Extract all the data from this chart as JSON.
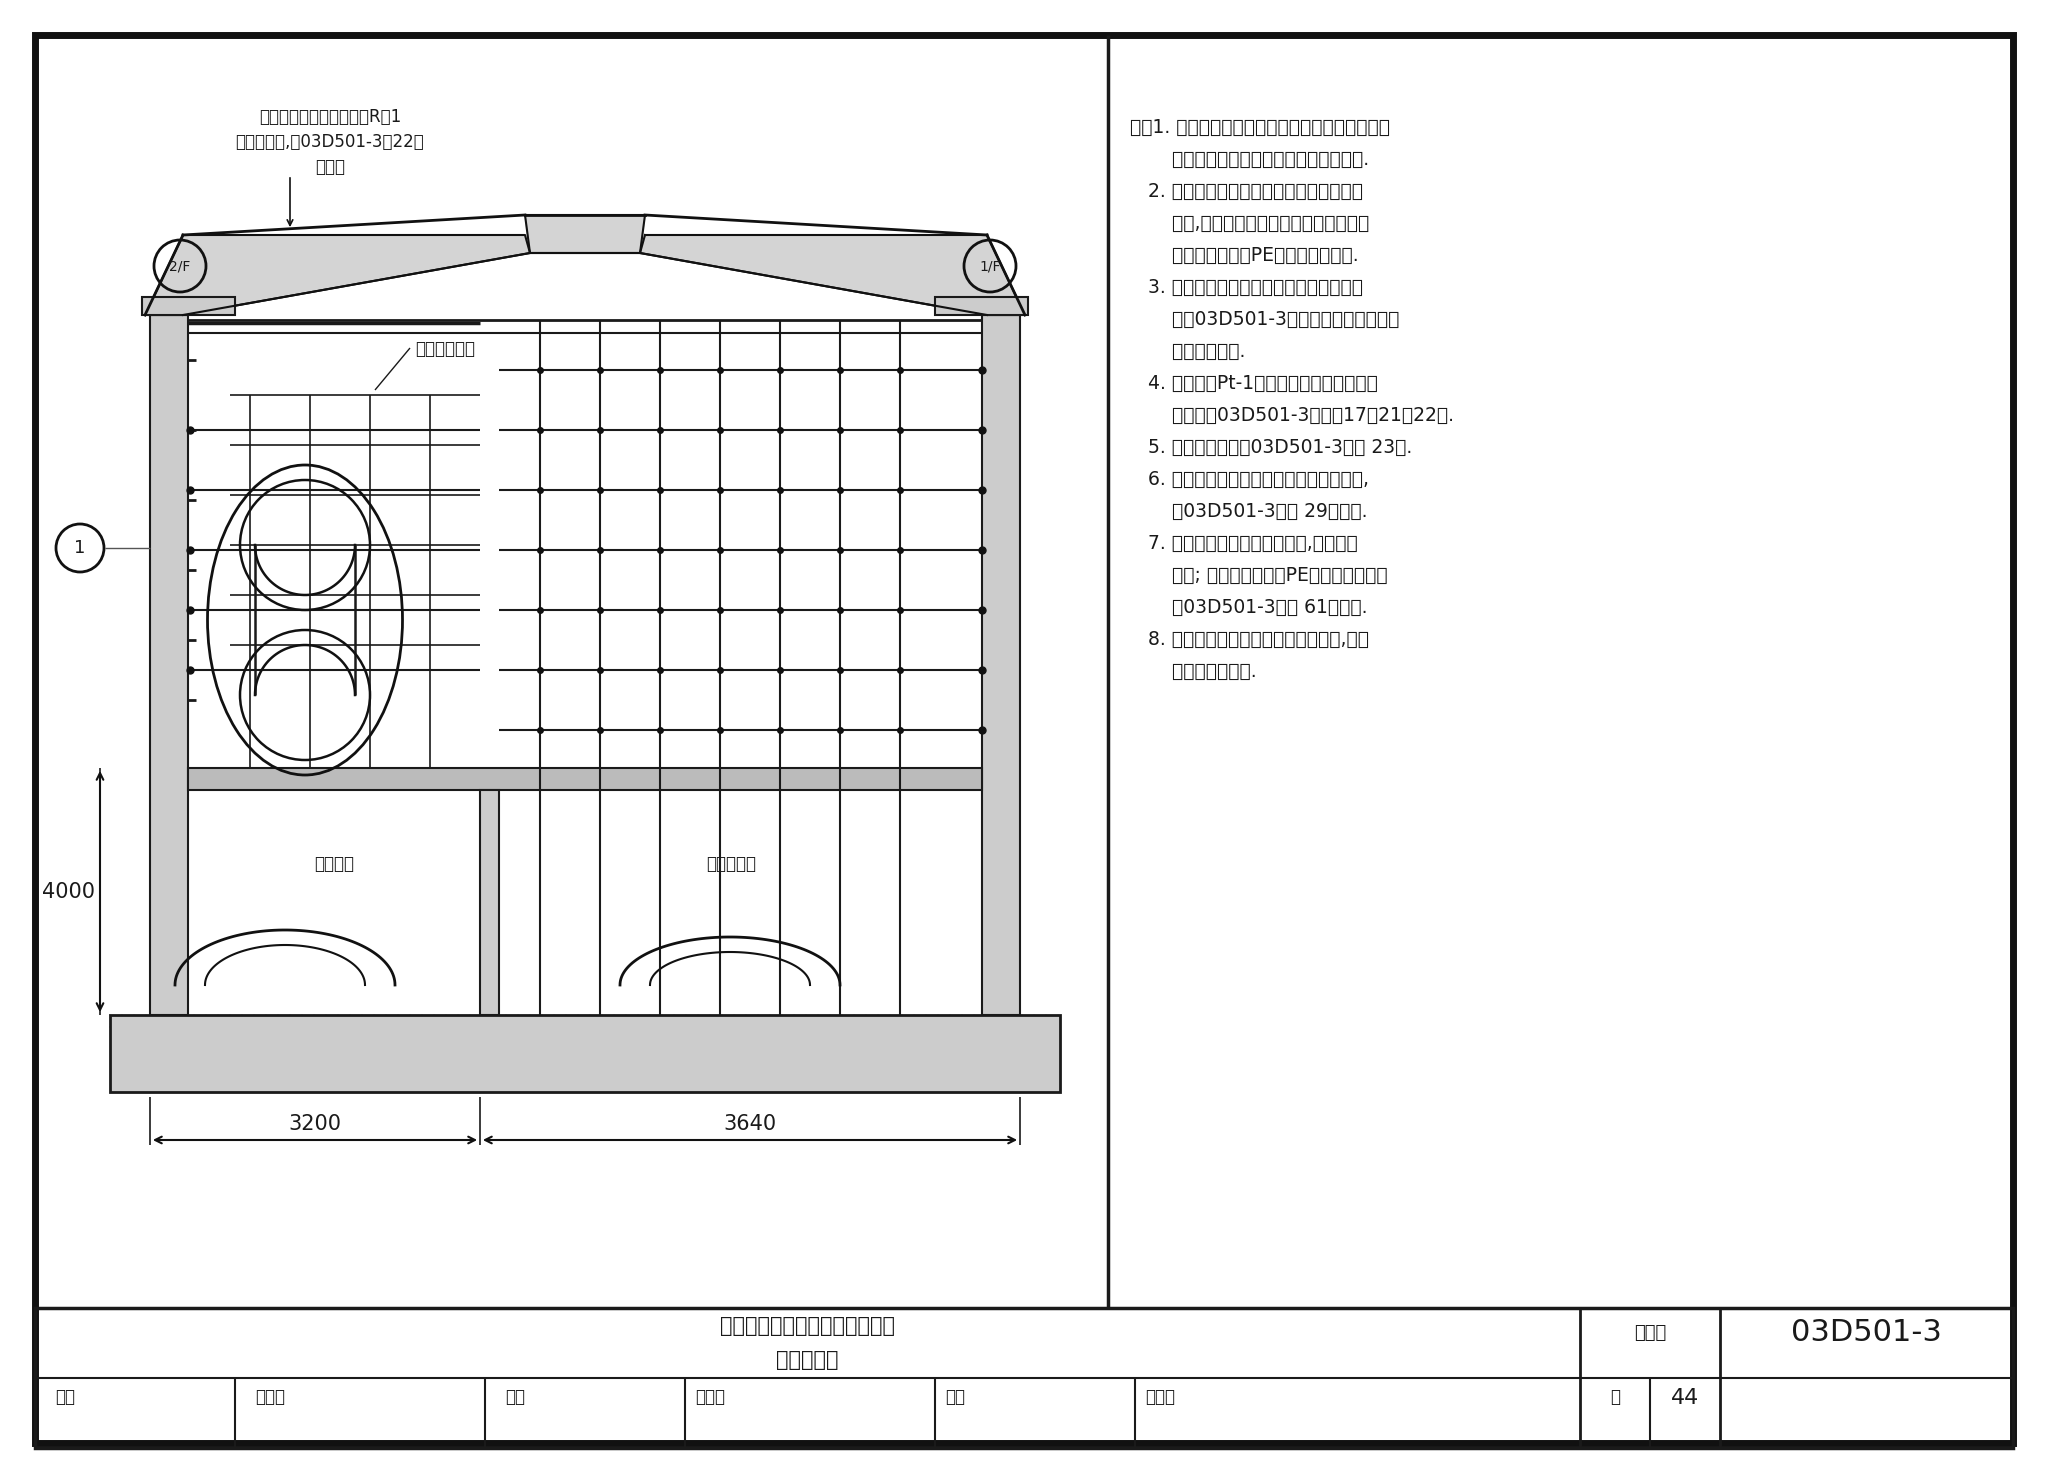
{
  "bg_color": "#ffffff",
  "border_color": "#1a1a1a",
  "notes_lines": [
    "注：1. 本建筑物的建筑结构（柱、基础、屋架、天",
    "       窗架、屋面板）均采用钉筋混凝土构件.",
    "   2. 本建筑物内电气装置的接地体利用柱子",
    "       基础,既作为车间变电所的接地体也作为",
    "       车间内电气设备PE线的重复接地体.",
    "   3. 有关构件中的钉筋与预埋连接板的连接",
    "       已捠03D501-3图集中相应做法向土建",
    "       设计提出要求.",
    "   4. 各柱子上Pt-1预埋件与基础钉筋网的连",
    "       接要求视03D501-3图集的17、21、22页.",
    "   5. 屋面板的结构视03D501-3图集 23页.",
    "   6. 伸缩缝处两侧柱子的柱顶预埋件要跨接,",
    "       捠03D501-3图集 29页施工.",
    "   7. 本车间设有附式车间变电所,其接地见",
    "       左图; 车间内电气设备PE线的重复接地可",
    "       捠03D501-3图集 61页连接.",
    "   8. 当车间基础的接地电阵满足要求时,可不",
    "       另设人工接地体."
  ],
  "title_main1": "工厂车间建筑物基础做电气装置",
  "title_main2": "的接地装置",
  "atlas_label": "图集号",
  "atlas_number": "03D501-3",
  "page_label": "页",
  "page_number": "44",
  "bottom_row": [
    "审核",
    "北京信",
    "校对",
    "董石根",
    "设计",
    "林维勇"
  ],
  "draw_label_top1": "与柱子上设于地面以上的R－1",
  "draw_label_top2": "预埋件焼接,视03D501-3的22页",
  "draw_label_top3": "接地线",
  "draw_label_post": "临时接地线桃",
  "draw_label_trans": "变压器室",
  "draw_label_lv": "低压配电室",
  "draw_label_3200": "3200",
  "draw_label_3640": "3640",
  "draw_label_4000": "4000",
  "draw_label_2f": "2/F",
  "draw_label_1f": "1/F",
  "draw_label_1": "1"
}
